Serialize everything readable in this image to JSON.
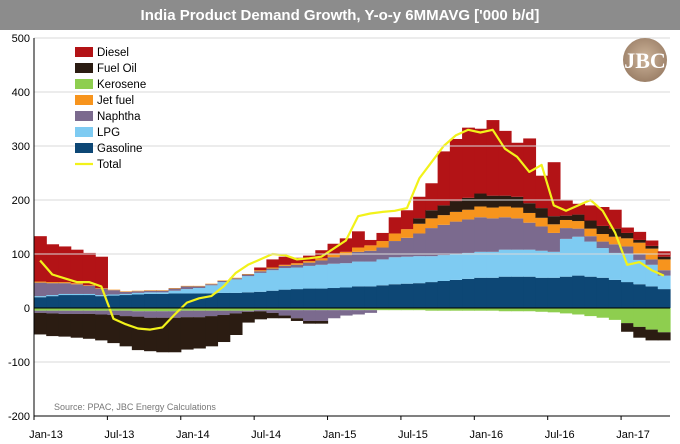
{
  "chart_data": {
    "type": "area",
    "title": "India Product Demand Growth, Y-o-y 6MMAVG  ['000 b/d]",
    "source": "Source: PPAC, JBC Energy Calculations",
    "logo_text": "JBC",
    "ylim": [
      -200,
      500
    ],
    "yticks": [
      -200,
      -100,
      0,
      100,
      200,
      300,
      400,
      500
    ],
    "x_tick_labels": [
      "Jan-13",
      "Jul-13",
      "Jan-14",
      "Jul-14",
      "Jan-15",
      "Jul-15",
      "Jan-16",
      "Jul-16",
      "Jan-17"
    ],
    "x_tick_index": [
      0,
      6,
      12,
      18,
      24,
      30,
      36,
      42,
      48
    ],
    "n_periods": 52,
    "colors": {
      "Diesel": "#b31316",
      "Fuel Oil": "#2b1c12",
      "Kerosene": "#8ece4f",
      "Jet fuel": "#f7941d",
      "Naphtha": "#7b6a8e",
      "LPG": "#7ecbf2",
      "Gasoline": "#0d4775",
      "Total": "#f2f21a"
    },
    "legend": [
      "Diesel",
      "Fuel Oil",
      "Kerosene",
      "Jet fuel",
      "Naphtha",
      "LPG",
      "Gasoline",
      "Total"
    ],
    "series": [
      {
        "name": "Gasoline",
        "values": [
          20,
          22,
          24,
          24,
          24,
          22,
          23,
          24,
          25,
          26,
          26,
          27,
          27,
          27,
          27,
          28,
          28,
          29,
          30,
          32,
          34,
          35,
          36,
          36,
          37,
          38,
          40,
          40,
          42,
          44,
          45,
          46,
          48,
          50,
          52,
          54,
          56,
          56,
          58,
          58,
          58,
          56,
          56,
          58,
          60,
          58,
          56,
          52,
          48,
          44,
          40,
          35
        ]
      },
      {
        "name": "LPG",
        "values": [
          2,
          2,
          2,
          2,
          2,
          2,
          2,
          2,
          3,
          3,
          3,
          5,
          8,
          10,
          15,
          20,
          25,
          30,
          35,
          38,
          40,
          40,
          42,
          44,
          45,
          45,
          46,
          46,
          48,
          50,
          50,
          50,
          48,
          48,
          48,
          48,
          48,
          48,
          50,
          50,
          50,
          50,
          48,
          70,
          72,
          65,
          55,
          50,
          52,
          45,
          40,
          25
        ]
      },
      {
        "name": "Naphtha",
        "values": [
          25,
          22,
          20,
          18,
          15,
          12,
          8,
          4,
          3,
          3,
          3,
          4,
          5,
          3,
          2,
          2,
          2,
          3,
          3,
          3,
          4,
          5,
          6,
          8,
          12,
          15,
          18,
          20,
          22,
          30,
          35,
          42,
          52,
          56,
          60,
          62,
          64,
          62,
          60,
          58,
          50,
          45,
          35,
          20,
          15,
          10,
          12,
          16,
          14,
          12,
          10,
          10
        ]
      },
      {
        "name": "Jet fuel",
        "values": [
          2,
          2,
          2,
          2,
          1,
          1,
          1,
          1,
          1,
          1,
          1,
          1,
          1,
          1,
          1,
          1,
          1,
          1,
          2,
          2,
          2,
          3,
          3,
          4,
          5,
          6,
          8,
          10,
          12,
          14,
          16,
          18,
          18,
          18,
          18,
          18,
          20,
          20,
          20,
          20,
          18,
          16,
          16,
          15,
          14,
          14,
          14,
          14,
          15,
          20,
          20,
          20
        ]
      },
      {
        "name": "Fuel Oil",
        "values": [
          0,
          0,
          0,
          0,
          0,
          0,
          0,
          0,
          0,
          0,
          0,
          0,
          0,
          0,
          0,
          0,
          0,
          0,
          0,
          0,
          0,
          0,
          0,
          0,
          0,
          0,
          0,
          0,
          0,
          0,
          0,
          10,
          15,
          18,
          20,
          22,
          24,
          22,
          20,
          20,
          18,
          18,
          15,
          8,
          12,
          15,
          15,
          15,
          10,
          5,
          5,
          5
        ]
      },
      {
        "name": "Diesel",
        "values": [
          84,
          70,
          66,
          62,
          60,
          58,
          0,
          0,
          0,
          0,
          0,
          0,
          0,
          0,
          0,
          0,
          0,
          0,
          5,
          15,
          15,
          10,
          10,
          15,
          20,
          25,
          30,
          10,
          15,
          30,
          35,
          40,
          50,
          100,
          115,
          130,
          120,
          140,
          120,
          100,
          120,
          60,
          100,
          30,
          20,
          28,
          35,
          35,
          10,
          15,
          10,
          10
        ]
      },
      {
        "name": "Kerosene",
        "values": [
          -5,
          -5,
          -5,
          -5,
          -5,
          -5,
          -5,
          -5,
          -6,
          -6,
          -6,
          -6,
          -5,
          -5,
          -5,
          -5,
          -5,
          -5,
          -4,
          -4,
          -4,
          -4,
          -4,
          -4,
          -4,
          -4,
          -4,
          -4,
          -4,
          -4,
          -4,
          -4,
          -5,
          -5,
          -5,
          -5,
          -5,
          -5,
          -6,
          -6,
          -6,
          -7,
          -8,
          -10,
          -12,
          -15,
          -18,
          -22,
          -28,
          -35,
          -40,
          -45
        ]
      },
      {
        "name": "Naphtha_neg",
        "values": [
          -4,
          -5,
          -6,
          -6,
          -6,
          -7,
          -8,
          -10,
          -10,
          -12,
          -12,
          -12,
          -12,
          -12,
          -10,
          -8,
          -5,
          -2,
          -2,
          -5,
          -10,
          -15,
          -20,
          -20,
          -15,
          -10,
          -8,
          -5,
          0,
          0,
          0,
          0,
          0,
          0,
          0,
          0,
          0,
          0,
          0,
          0,
          0,
          0,
          0,
          0,
          0,
          0,
          0,
          0,
          0,
          0,
          0,
          0
        ]
      },
      {
        "name": "Fuel_neg",
        "values": [
          -40,
          -42,
          -42,
          -44,
          -46,
          -48,
          -52,
          -56,
          -62,
          -62,
          -64,
          -64,
          -60,
          -58,
          -56,
          -50,
          -40,
          -20,
          -15,
          -10,
          -5,
          -5,
          -5,
          -5,
          0,
          0,
          0,
          0,
          0,
          0,
          0,
          0,
          0,
          0,
          0,
          0,
          0,
          0,
          0,
          0,
          0,
          0,
          0,
          0,
          0,
          0,
          0,
          0,
          -16,
          -20,
          -20,
          -15
        ]
      },
      {
        "name": "Total",
        "values": [
          88,
          62,
          55,
          48,
          48,
          40,
          -20,
          -30,
          -38,
          -40,
          -36,
          -12,
          10,
          18,
          22,
          40,
          65,
          80,
          90,
          100,
          98,
          90,
          92,
          95,
          110,
          125,
          170,
          175,
          178,
          180,
          185,
          240,
          270,
          300,
          320,
          330,
          325,
          330,
          295,
          280,
          252,
          265,
          190,
          180,
          190,
          200,
          180,
          140,
          80,
          85,
          70,
          60
        ]
      }
    ]
  }
}
